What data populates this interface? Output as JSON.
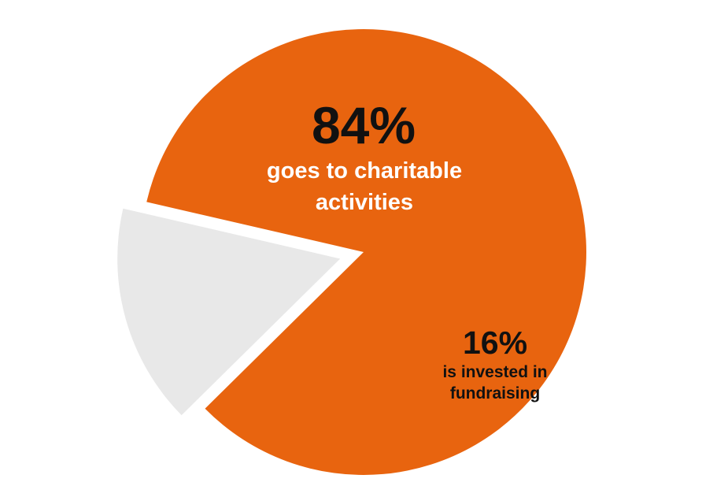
{
  "chart_data": {
    "type": "pie",
    "slices": [
      {
        "value": 84,
        "value_label": "84%",
        "label_lines": [
          "goes to charitable",
          "activities"
        ],
        "color": "#e8640f",
        "text_color": "#ffffff"
      },
      {
        "value": 16,
        "value_label": "16%",
        "label_lines": [
          "is invested in",
          "fundraising"
        ],
        "color": "#e8e8e8",
        "text_color": "#111111",
        "exploded": true
      }
    ],
    "legend": "none"
  }
}
